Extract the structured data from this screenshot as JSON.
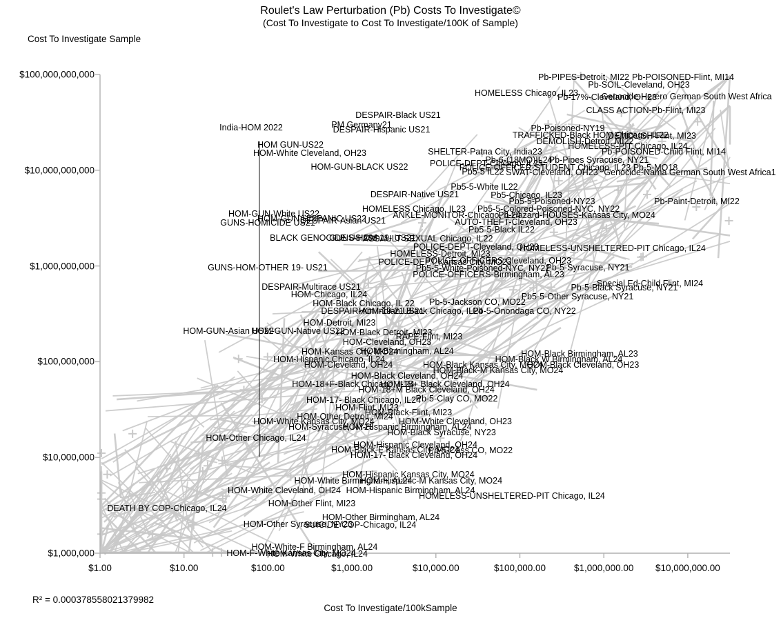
{
  "title": "Roulet's Law Perturbation (Pb) Costs To Investigate©",
  "subtitle": "(Cost To Investigate to Cost To Investigate/100K of Sample)",
  "y_axis_title": "Cost To Investigate Sample",
  "x_axis_title": "Cost To Investigate/100kSample",
  "r_squared_text": "R² = 0.000378558021379982",
  "colors": {
    "cloud_line": "#c9c9c9",
    "axis": "#b0b0b0",
    "label_text": "#000000",
    "black_series_line": "#1a1a1a"
  },
  "chart_data": {
    "type": "scatter",
    "x_scale": "log",
    "y_scale": "log",
    "x_range": [
      1,
      10000000
    ],
    "y_range": [
      1000000,
      100000000000
    ],
    "grid": false,
    "legend": "none",
    "r_squared": 0.000378558021379982,
    "x_ticks": [
      "$1.00",
      "$10.00",
      "$100.00",
      "$1,000.00",
      "$10,000.00",
      "$100,000.00",
      "$1,000,000.00",
      "$10,000,000.00"
    ],
    "y_ticks": [
      "$100,000,000,000",
      "$10,000,000,000",
      "$1,000,000,000",
      "$100,000,000",
      "$10,000,000",
      "$1,000,000"
    ],
    "points": [
      [
        "Pb-PIPES-Detroit, MI22",
        846,
        112
      ],
      [
        "Pb-POISONED-Flint, MI14",
        990,
        112
      ],
      [
        "Pb-SOIL-Cleveland, OH23",
        926,
        123
      ],
      [
        "HOMELESS Chicago, IL23",
        763,
        135
      ],
      [
        "Pb-17%-Cleveland, OH23",
        880,
        141
      ],
      [
        "Genocide-Herero German South West Africa",
        995,
        140
      ],
      [
        "CLASS ACTION-Pb-Flint, MI23",
        936,
        160
      ],
      [
        "DESPAIR-Black US21",
        577,
        167
      ],
      [
        "PM Germany21",
        524,
        181
      ],
      [
        "India-HOM 2022",
        364,
        185
      ],
      [
        "DESPAIR-Hispanic US21",
        553,
        188
      ],
      [
        "Pb-Poisoned-NY19",
        823,
        186
      ],
      [
        "TRAFFICKED-Black HOM Chicago, IL22",
        856,
        196
      ],
      [
        "DEMOLISH-Flint, MI23",
        945,
        197
      ],
      [
        "DEMOLISH-Detroit, MI22",
        848,
        205
      ],
      [
        "HOMELESS-PIT Chicago, IL24",
        910,
        212
      ],
      [
        "HOM GUN-US22",
        421,
        210
      ],
      [
        "HOM-White Cleveland, OH23",
        449,
        222
      ],
      [
        "SHELTER-Patna City, India23",
        703,
        220
      ],
      [
        "Pb-POISONED-Child Flint, MI14",
        962,
        220
      ],
      [
        "POLICE-DEPT-Chicago, IL23",
        705,
        237
      ],
      [
        "Pb-6-(18MO)IL24",
        752,
        232
      ],
      [
        "Pb-Pipes Syracuse, NY21",
        868,
        232
      ],
      [
        "HOM-GUN-BLACK US22",
        521,
        242
      ],
      [
        "POLICE-OFFICER-STUDENT Chicago, IL23",
        790,
        243
      ],
      [
        "Pb5-5 IL22",
        700,
        249
      ],
      [
        "SWAT-Cleveland, OH23",
        800,
        250
      ],
      [
        "Pb-5-MO18",
        950,
        243
      ],
      [
        "Genocide-Nama German South West Africa1",
        1000,
        250
      ],
      [
        "Pb5-5-White IL22",
        702,
        271
      ],
      [
        "DESPAIR-Native US21",
        601,
        282
      ],
      [
        "Pb5-Chicago, IL23",
        763,
        283
      ],
      [
        "Pb5-5-Poisoned-NY23",
        800,
        292
      ],
      [
        "Pb-Paint-Detroit, MI22",
        1010,
        292
      ],
      [
        "HOMELESS Chicago, IL23",
        600,
        303
      ],
      [
        "Pb5-5-Colored-Poisoned-NYC, NY22",
        795,
        303
      ],
      [
        "ANKLE-MONITOR-Chicago, IL24",
        662,
        312
      ],
      [
        "Pb-Hazard-HOUSES-Kansas City, MO24",
        836,
        312
      ],
      [
        "HOM-GUN-White US22",
        397,
        310
      ],
      [
        "HOM-GUN-HISPANIC US22",
        452,
        317
      ],
      [
        "DESPAIR-Asian US21",
        497,
        320
      ],
      [
        "GUNS-HOMICIDE US21",
        388,
        323
      ],
      [
        "AUTO-THEFT-Cleveland, OH23",
        748,
        322
      ],
      [
        "Pb5-5-Black IL22",
        727,
        333
      ],
      [
        "BLACK GENOCIDE US 20th",
        471,
        345
      ],
      [
        "GUNS-HOM 19- US21",
        540,
        345
      ],
      [
        "ASSAULT-SEXUAL Chicago, IL22",
        620,
        346
      ],
      [
        "POLICE-DEPT-Cleveland, OH23",
        690,
        358
      ],
      [
        "HOMELESS-UNSHELTERED-PIT Chicago, IL24",
        888,
        360
      ],
      [
        "HOMELESS-Detroit, MI23",
        638,
        368
      ],
      [
        "POLICE-OFFICERS Cleveland, OH23",
        722,
        378
      ],
      [
        "POLICE-DEPT Kansas City, MO23",
        645,
        380
      ],
      [
        "GUNS-HOM-OTHER 19- US21",
        388,
        388
      ],
      [
        "Pb5-5-White-Poisoned-NYC, NY22",
        700,
        389
      ],
      [
        "Pb-5-Syracuse, NY21",
        852,
        388
      ],
      [
        "POLICE-OFFICERS-Birmingham, AL23",
        708,
        398
      ],
      [
        "Special Ed-Child Flint, MI24",
        942,
        411
      ],
      [
        "Pb-5-Black Syracuse, NY21",
        905,
        417
      ],
      [
        "DESPAIR-Multirace US21",
        451,
        416
      ],
      [
        "HOM-Chicago, IL24",
        477,
        427
      ],
      [
        "Pb5-5-Other Syracuse, NY21",
        837,
        430
      ],
      [
        "HOM-Black Chicago, IL 22",
        527,
        440
      ],
      [
        "Pb-5-Jackson CO, MO22",
        692,
        438
      ],
      [
        "DESPAIR-Am Indian US21",
        540,
        451
      ],
      [
        "HOM-19-21 Black Chicago, IL24",
        610,
        451
      ],
      [
        "Pb-5-Onondaga CO, NY22",
        760,
        451
      ],
      [
        "HOM-Detroit, MI23",
        492,
        468
      ],
      [
        "HOM-GUN-Asian US22",
        331,
        480
      ],
      [
        "HOM-GUN-Native US22",
        432,
        480
      ],
      [
        "HOM-Black Detroit, MI23",
        557,
        482
      ],
      [
        "RAPE-Flint, MI23",
        622,
        488
      ],
      [
        "HOM-Cleveland, OH23",
        561,
        496
      ],
      [
        "HOM-Kansas City, MO24",
        507,
        510
      ],
      [
        "HOM-Birmingham, AL24",
        590,
        509
      ],
      [
        "HOM-Black Birmingham, AL23",
        840,
        513
      ],
      [
        "HOM-Hispanic Chicago, IL24",
        477,
        521
      ],
      [
        "HOM-Black W Birmingham, AL24",
        810,
        521
      ],
      [
        "HOM-Cleveland, OH24",
        505,
        529
      ],
      [
        "HOM-Black Kansas City, MO24",
        700,
        529
      ],
      [
        "HOM-Black Cleveland, OH23",
        845,
        529
      ],
      [
        "HOM-Black-M Kansas City, MO24",
        722,
        537
      ],
      [
        "HOM-Black Cleveland, OH24",
        590,
        545
      ],
      [
        "HOM-18+F-Black Chicago, IL24",
        512,
        557
      ],
      [
        "HOM-18+ Black Cleveland, OH24",
        645,
        557
      ],
      [
        "HOM-18+M Black Cleveland, OH24",
        618,
        565
      ],
      [
        "HOM-17- Black Chicago, IL24",
        527,
        580
      ],
      [
        "Pb-5-Clay CO, MO22",
        662,
        578
      ],
      [
        "HOM-Flint, MI23",
        532,
        591
      ],
      [
        "HOM-Black-Flint, MI23",
        592,
        598
      ],
      [
        "HOM-Other Detroit, MI24",
        500,
        604
      ],
      [
        "HOM-White Kansas City, MO24",
        455,
        611
      ],
      [
        "HOM-White Cleveland, OH23",
        660,
        611
      ],
      [
        "HOM-Syracuse, NY23",
        480,
        619
      ],
      [
        "HOM-Hispanic Birmingham, AL24",
        590,
        619
      ],
      [
        "HOM-Black Syracuse, NY23",
        640,
        627
      ],
      [
        "HOM-Other Chicago, IL24",
        371,
        635
      ],
      [
        "HOM-Hispanic Cleveland, OH24",
        602,
        645
      ],
      [
        "HOM-Black-F Kansas City, MO24",
        573,
        652
      ],
      [
        "Pb-5-Cass CO, MO22",
        682,
        653
      ],
      [
        "HOM-17- Black Cleveland, OH24",
        600,
        660
      ],
      [
        "HOM-Hispanic Kansas City, MO24",
        592,
        688
      ],
      [
        "HOM-White Birmingham, AL24",
        512,
        697
      ],
      [
        "HOM-Hispanic-M Kansas City, MO24",
        625,
        697
      ],
      [
        "HOM-White Cleveland, OH24",
        412,
        711
      ],
      [
        "HOM-Hispanic Birmingham, AL24",
        595,
        711
      ],
      [
        "HOMELESS-UNSHELTERED-PIT Chicago, IL24",
        742,
        719
      ],
      [
        "HOM-Other Flint, MI23",
        452,
        730
      ],
      [
        "DEATH BY COP-Chicago, IL24",
        242,
        737
      ],
      [
        "HOM-Other Birmingham, AL24",
        552,
        750
      ],
      [
        "HOM-Other Syracuse, NY23",
        432,
        760
      ],
      [
        "SUICIDE COP-Chicago, IL24",
        522,
        761
      ],
      [
        "HOM-White-F Birmingham, AL24",
        456,
        793
      ],
      [
        "HOM-F-White Kansas City, MO24",
        422,
        802
      ],
      [
        "HOM-White Chicago, IL24",
        460,
        803
      ]
    ]
  }
}
